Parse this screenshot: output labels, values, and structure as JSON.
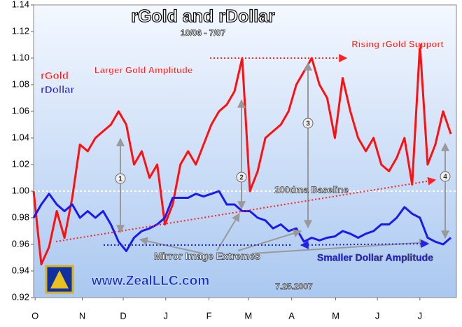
{
  "chart_data": {
    "type": "line",
    "title": "rGold and rDollar",
    "subtitle": "10/06 - 7/07",
    "ylim": [
      0.92,
      1.14
    ],
    "yticks": [
      0.92,
      0.94,
      0.96,
      0.98,
      {
        "value": 1,
        "label": "1.00"
      },
      1.02,
      1.04,
      1.06,
      1.08,
      {
        "value": 1.1,
        "label": "1.10"
      },
      1.12,
      1.14
    ],
    "xlim": [
      0,
      54
    ],
    "xticks": [
      {
        "value": 0.2,
        "label": "O"
      },
      {
        "value": 6.3,
        "label": "N"
      },
      {
        "value": 11.6,
        "label": "D"
      },
      {
        "value": 17.1,
        "label": "J"
      },
      {
        "value": 22.7,
        "label": "F"
      },
      {
        "value": 27.8,
        "label": "M"
      },
      {
        "value": 33.4,
        "label": "A"
      },
      {
        "value": 39.1,
        "label": "M"
      },
      {
        "value": 44.5,
        "label": "J"
      },
      {
        "value": 50,
        "label": "J"
      }
    ],
    "baseline": 1,
    "series": [
      {
        "name": "rGold",
        "color": "#ff1010",
        "values": [
          1.0,
          0.945,
          0.958,
          0.985,
          0.965,
          0.995,
          1.035,
          1.03,
          1.04,
          1.045,
          1.05,
          1.06,
          1.05,
          1.02,
          1.03,
          1.01,
          1.02,
          0.975,
          0.99,
          1.02,
          1.03,
          1.02,
          1.035,
          1.05,
          1.06,
          1.065,
          1.075,
          1.1,
          1.0,
          1.015,
          1.04,
          1.045,
          1.05,
          1.06,
          1.08,
          1.09,
          1.1,
          1.08,
          1.07,
          1.04,
          1.085,
          1.06,
          1.04,
          1.03,
          1.04,
          1.02,
          1.015,
          1.025,
          1.04,
          1.005,
          1.11,
          1.02,
          1.035,
          1.06,
          1.043
        ]
      },
      {
        "name": "rDollar",
        "color": "#1a1aee",
        "values": [
          0.98,
          0.99,
          0.998,
          0.99,
          0.985,
          0.99,
          0.98,
          0.985,
          0.98,
          0.985,
          0.975,
          0.962,
          0.955,
          0.965,
          0.97,
          0.972,
          0.975,
          0.98,
          0.995,
          0.995,
          0.995,
          0.998,
          0.996,
          0.998,
          1.0,
          0.99,
          0.99,
          0.985,
          0.985,
          0.98,
          0.978,
          0.972,
          0.975,
          0.97,
          0.972,
          0.962,
          0.965,
          0.963,
          0.965,
          0.966,
          0.97,
          0.968,
          0.965,
          0.968,
          0.97,
          0.975,
          0.975,
          0.98,
          0.988,
          0.983,
          0.98,
          0.965,
          0.962,
          0.96,
          0.965
        ]
      }
    ],
    "annotations": [
      "Larger Gold Amplitude",
      "Rising rGold Support",
      "200dma Baseline",
      "Mirror Image Extremes",
      "Smaller Dollar Amplitude",
      "www.ZealLLC.com",
      "7.25.2007"
    ],
    "markers": [
      "1",
      "2",
      "3",
      "4"
    ]
  }
}
